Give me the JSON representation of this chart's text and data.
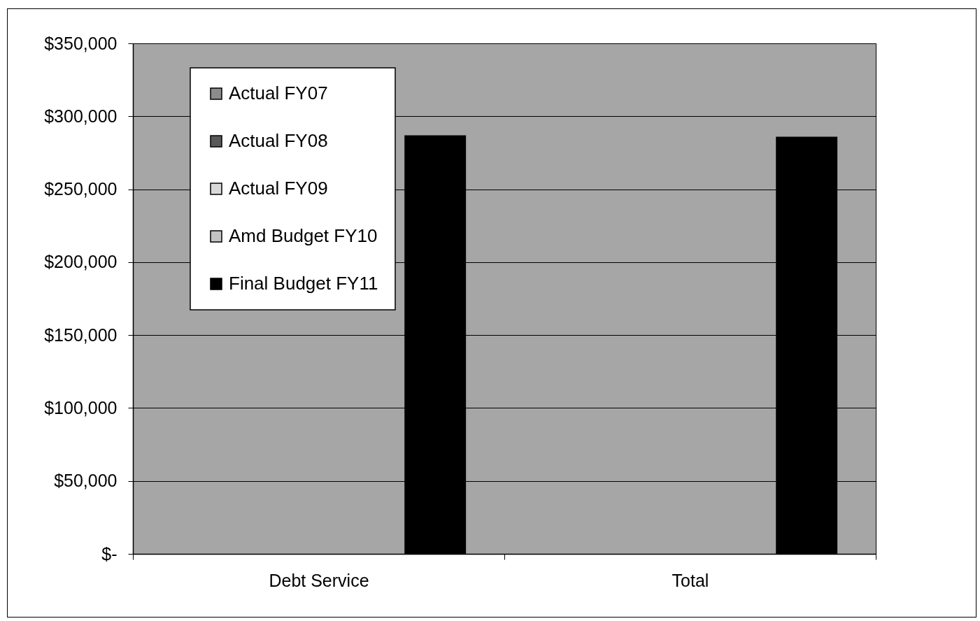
{
  "chart_data": {
    "type": "bar",
    "categories": [
      "Debt Service",
      "Total"
    ],
    "series": [
      {
        "name": "Actual FY07",
        "color": "#8c8c8c",
        "values": [
          null,
          null
        ]
      },
      {
        "name": "Actual FY08",
        "color": "#595959",
        "values": [
          null,
          null
        ]
      },
      {
        "name": "Actual FY09",
        "color": "#d9d9d9",
        "values": [
          null,
          null
        ]
      },
      {
        "name": "Amd Budget FY10",
        "color": "#c4c4c4",
        "values": [
          null,
          null
        ]
      },
      {
        "name": "Final Budget FY11",
        "color": "#000000",
        "values": [
          287000,
          286000
        ]
      }
    ],
    "ylim": [
      0,
      350000
    ],
    "yticks": [
      {
        "value": 0,
        "label": "$-"
      },
      {
        "value": 50000,
        "label": "$50,000"
      },
      {
        "value": 100000,
        "label": "$100,000"
      },
      {
        "value": 150000,
        "label": "$150,000"
      },
      {
        "value": 200000,
        "label": "$200,000"
      },
      {
        "value": 250000,
        "label": "$250,000"
      },
      {
        "value": 300000,
        "label": "$300,000"
      },
      {
        "value": 350000,
        "label": "$350,000"
      }
    ],
    "grid": "y",
    "legend": "top left"
  }
}
